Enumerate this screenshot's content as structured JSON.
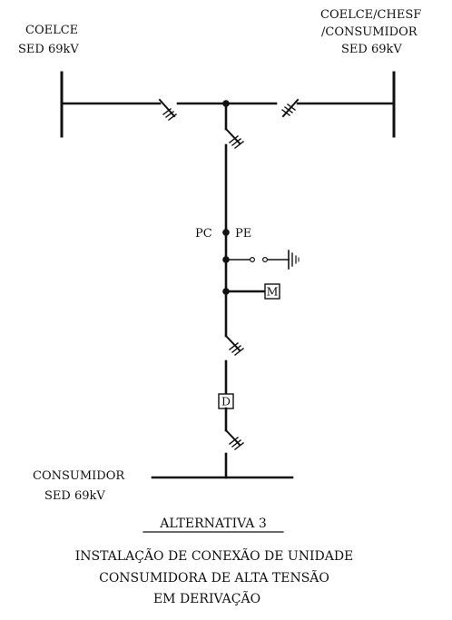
{
  "source_left": {
    "line1": "COELCE",
    "line2": "SED 69kV"
  },
  "source_right": {
    "line1": "COELCE/CHESF",
    "line2": "/CONSUMIDOR",
    "line3": "SED 69kV"
  },
  "node_labels": {
    "pc": "PC",
    "pe": "PE"
  },
  "meter_label": "M",
  "device_label": "D",
  "consumer": {
    "line1": "CONSUMIDOR",
    "line2": "SED 69kV"
  },
  "caption": {
    "title": "ALTERNATIVA 3",
    "line1": "INSTALAÇÃO DE CONEXÃO DE UNIDADE",
    "line2": "CONSUMIDORA DE ALTA TENSÃO",
    "line3": "EM DERIVAÇÃO"
  },
  "colors": {
    "ink": "#111111",
    "background": "#ffffff"
  }
}
